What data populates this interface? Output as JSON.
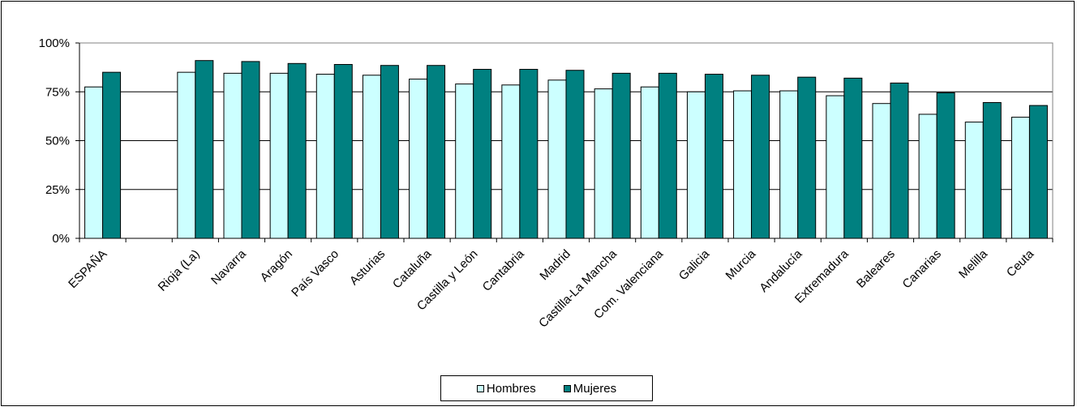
{
  "chart_data": {
    "type": "bar",
    "title": "",
    "xlabel": "",
    "ylabel": "",
    "ylim": [
      0,
      100
    ],
    "yticks": [
      "0%",
      "25%",
      "50%",
      "75%",
      "100%"
    ],
    "grid": true,
    "legend_position": "bottom",
    "categories": [
      "ESPAÑA",
      "",
      "Rioja (La)",
      "Navarra",
      "Aragón",
      "País Vasco",
      "Asturias",
      "Cataluña",
      "Castilla y León",
      "Cantabria",
      "Madrid",
      "Castilla-La Mancha",
      "Com. Valenciana",
      "Galicia",
      "Murcia",
      "Andalucía",
      "Extremadura",
      "Baleares",
      "Canarias",
      "Melilla",
      "Ceuta"
    ],
    "series": [
      {
        "name": "Hombres",
        "color": "#ccffff",
        "values": [
          77.5,
          null,
          85,
          84.5,
          84.5,
          84,
          83.5,
          81.5,
          79,
          78.5,
          81,
          76.5,
          77.5,
          75,
          75.5,
          75.5,
          73,
          69,
          63.5,
          59.5,
          62
        ]
      },
      {
        "name": "Mujeres",
        "color": "#008080",
        "values": [
          85,
          null,
          91,
          90.5,
          89.5,
          89,
          88.5,
          88.5,
          86.5,
          86.5,
          86,
          84.5,
          84.5,
          84,
          83.5,
          82.5,
          82,
          79.5,
          74.5,
          69.5,
          68
        ]
      }
    ]
  }
}
